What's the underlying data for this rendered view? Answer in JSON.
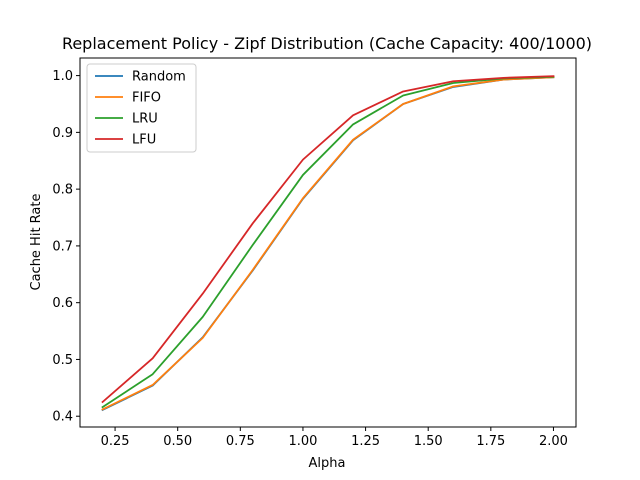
{
  "chart_data": {
    "type": "line",
    "title": "Replacement Policy - Zipf Distribution (Cache Capacity: 400/1000)",
    "xlabel": "Alpha",
    "ylabel": "Cache Hit Rate",
    "xlim": [
      0.11,
      2.09
    ],
    "ylim": [
      0.381,
      1.031
    ],
    "x_ticks": [
      0.25,
      0.5,
      0.75,
      1.0,
      1.25,
      1.5,
      1.75,
      2.0
    ],
    "x_tick_labels": [
      "0.25",
      "0.50",
      "0.75",
      "1.00",
      "1.25",
      "1.50",
      "1.75",
      "2.00"
    ],
    "y_ticks": [
      0.4,
      0.5,
      0.6,
      0.7,
      0.8,
      0.9,
      1.0
    ],
    "y_tick_labels": [
      "0.4",
      "0.5",
      "0.6",
      "0.7",
      "0.8",
      "0.9",
      "1.0"
    ],
    "grid": false,
    "legend_position": "upper-left",
    "x": [
      0.2,
      0.4,
      0.6,
      0.8,
      1.0,
      1.2,
      1.4,
      1.6,
      1.8,
      2.0
    ],
    "series": [
      {
        "name": "Random",
        "color": "#1f77b4",
        "values": [
          0.411,
          0.454,
          0.539,
          0.657,
          0.783,
          0.886,
          0.95,
          0.98,
          0.993,
          0.997
        ]
      },
      {
        "name": "FIFO",
        "color": "#ff7f0e",
        "values": [
          0.412,
          0.455,
          0.538,
          0.658,
          0.784,
          0.887,
          0.95,
          0.981,
          0.993,
          0.997
        ]
      },
      {
        "name": "LRU",
        "color": "#2ca02c",
        "values": [
          0.416,
          0.474,
          0.575,
          0.702,
          0.825,
          0.914,
          0.965,
          0.987,
          0.995,
          0.998
        ]
      },
      {
        "name": "LFU",
        "color": "#d62728",
        "values": [
          0.425,
          0.502,
          0.616,
          0.74,
          0.852,
          0.93,
          0.972,
          0.99,
          0.996,
          0.999
        ]
      }
    ]
  }
}
